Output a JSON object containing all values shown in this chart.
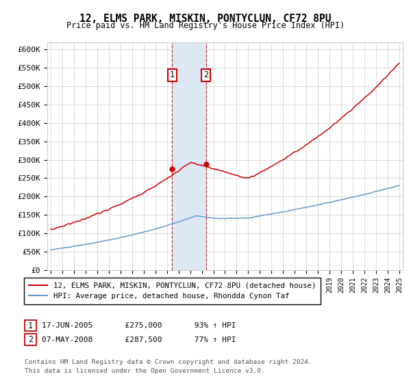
{
  "title": "12, ELMS PARK, MISKIN, PONTYCLUN, CF72 8PU",
  "subtitle": "Price paid vs. HM Land Registry's House Price Index (HPI)",
  "ylim": [
    0,
    620000
  ],
  "yticks": [
    0,
    50000,
    100000,
    150000,
    200000,
    250000,
    300000,
    350000,
    400000,
    450000,
    500000,
    550000,
    600000
  ],
  "ytick_labels": [
    "£0",
    "£50K",
    "£100K",
    "£150K",
    "£200K",
    "£250K",
    "£300K",
    "£350K",
    "£400K",
    "£450K",
    "£500K",
    "£550K",
    "£600K"
  ],
  "xlim_start": 1994.7,
  "xlim_end": 2025.3,
  "sale1_date": 2005.46,
  "sale1_price": 275000,
  "sale2_date": 2008.35,
  "sale2_price": 287500,
  "red_color": "#cc0000",
  "blue_color": "#6699cc",
  "shade_color": "#dce9f5",
  "grid_color": "#cccccc",
  "legend_label_red": "12, ELMS PARK, MISKIN, PONTYCLUN, CF72 8PU (detached house)",
  "legend_label_blue": "HPI: Average price, detached house, Rhondda Cynon Taf",
  "footer": "Contains HM Land Registry data © Crown copyright and database right 2024.\nThis data is licensed under the Open Government Licence v3.0."
}
